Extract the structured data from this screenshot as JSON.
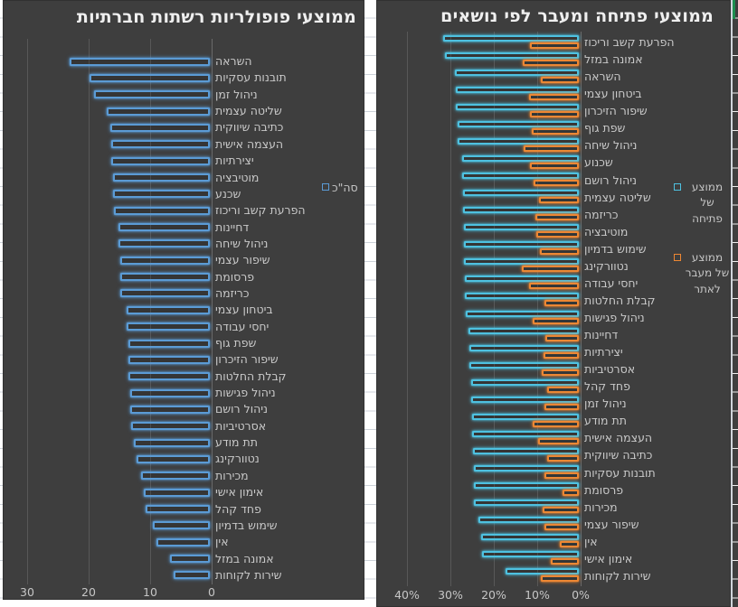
{
  "colors": {
    "chart_background": "#3E3E3E",
    "left_series_blue": "#5B9BD5",
    "right_series_cyan": "#4EC1E0",
    "right_series_orange": "#ED8733",
    "gridline": "#585858",
    "text": "#C9C9C9",
    "title_text": "#EFEFEF",
    "sheet_gridline": "#CCD2D8",
    "green_accent": "#1E8E4F"
  },
  "chart_data": [
    {
      "type": "bar",
      "orientation": "horizontal",
      "direction": "rtl",
      "title": "ממוצעי פופולריות רשתות חברתיות",
      "x_axis": {
        "ticks": [
          "30",
          "20",
          "10",
          "0"
        ],
        "min": 0,
        "max": 30,
        "reversed": true
      },
      "grid": "vertical-on",
      "legend_position": "right",
      "categories": [
        "השראה",
        "תובנות עסקיות",
        "ניהול זמן",
        "שליטה עצמית",
        "כתיבה שיווקית",
        "העצמה אישית",
        "יצירתיות",
        "מוטיבציה",
        "שכנע",
        "הפרעת קשב וריכוז",
        "דחיינות",
        "ניהול שיחה",
        "שיפור עצמי",
        "פרסומת",
        "כריזמה",
        "ביטחון עצמי",
        "יחסי עבודה",
        "שפת גוף",
        "שיפור הזיכרון",
        "קבלת החלטות",
        "ניהול פגישות",
        "ניהול רושם",
        "אסרטיביות",
        "תת מודע",
        "נטוורקינג",
        "מכירות",
        "אימון אישי",
        "פחד קהל",
        "שימוש בדמיון",
        "אין",
        "אמונה במזל",
        "שירות לקוחות"
      ],
      "series": [
        {
          "name": "סה\"כ",
          "color": "#5B9BD5",
          "values": [
            22.8,
            19.6,
            18.8,
            16.8,
            16.2,
            16.1,
            16.0,
            15.8,
            15.7,
            15.6,
            14.8,
            14.8,
            14.6,
            14.6,
            14.5,
            13.6,
            13.5,
            13.3,
            13.3,
            13.2,
            13.0,
            12.9,
            12.8,
            12.3,
            11.9,
            11.2,
            10.7,
            10.4,
            9.2,
            8.7,
            6.5,
            5.9
          ]
        }
      ]
    },
    {
      "type": "bar",
      "orientation": "horizontal",
      "direction": "rtl",
      "title": "ממוצעי פתיחה ומעבר לפי נושאים",
      "x_axis": {
        "ticks": [
          "40%",
          "30%",
          "20%",
          "10%",
          "0%"
        ],
        "min": 0,
        "max": 40,
        "unit": "%",
        "reversed": true
      },
      "grid": "vertical-on",
      "legend_position": "right",
      "categories": [
        "הפרעת קשב וריכוז",
        "אמונה במזל",
        "השראה",
        "ביטחון עצמי",
        "שיפור הזיכרון",
        "שפת גוף",
        "ניהול שיחה",
        "שכנוע",
        "ניהול רושם",
        "שליטה עצמית",
        "כריזמה",
        "מוטיבציה",
        "שימוש בדמיון",
        "נטוורקינג",
        "יחסי עבודה",
        "קבלת החלטות",
        "ניהול פגישות",
        "דחיינות",
        "יצירתיות",
        "אסרטיביות",
        "פחד קהל",
        "ניהול זמן",
        "תת מודע",
        "העצמה אישית",
        "כתיבה שיווקית",
        "תובנות עסקיות",
        "פרסומת",
        "מכירות",
        "שיפור עצמי",
        "אין",
        "אימון אישי",
        "שירות לקוחות"
      ],
      "series": [
        {
          "name": "ממוצע של פתיחה",
          "color": "#4EC1E0",
          "values": [
            31.2,
            30.8,
            28.5,
            28.3,
            28.3,
            27.9,
            27.9,
            26.9,
            26.9,
            26.7,
            26.7,
            26.5,
            26.5,
            26.5,
            26.3,
            26.2,
            26.0,
            25.4,
            25.3,
            25.3,
            24.9,
            24.8,
            24.6,
            24.5,
            24.4,
            24.2,
            24.2,
            24.1,
            23.2,
            22.5,
            22.3,
            16.9
          ]
        },
        {
          "name": "ממוצע של מעבר לאתר",
          "color": "#ED8733",
          "values": [
            11.2,
            12.9,
            8.8,
            11.5,
            11.2,
            10.8,
            12.7,
            11.2,
            10.4,
            9.2,
            10.0,
            9.8,
            9.0,
            13.1,
            11.4,
            7.9,
            10.7,
            7.7,
            8.1,
            8.6,
            7.4,
            7.9,
            10.6,
            9.3,
            7.4,
            7.9,
            3.8,
            8.3,
            7.9,
            4.3,
            6.5,
            8.8
          ]
        }
      ]
    }
  ]
}
